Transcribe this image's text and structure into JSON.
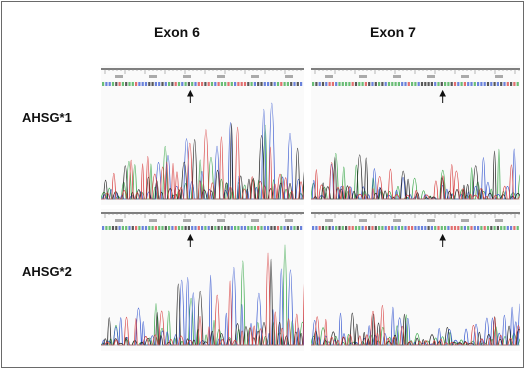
{
  "columns": [
    {
      "label": "Exon 6"
    },
    {
      "label": "Exon 7"
    }
  ],
  "rows": [
    {
      "label": "AHSG*1"
    },
    {
      "label": "AHSG*2"
    }
  ],
  "trace_colors": {
    "A": "#3aa84a",
    "C": "#3a5ad0",
    "G": "#222222",
    "T": "#d84040"
  },
  "arrow_icon": "arrow-up-icon"
}
